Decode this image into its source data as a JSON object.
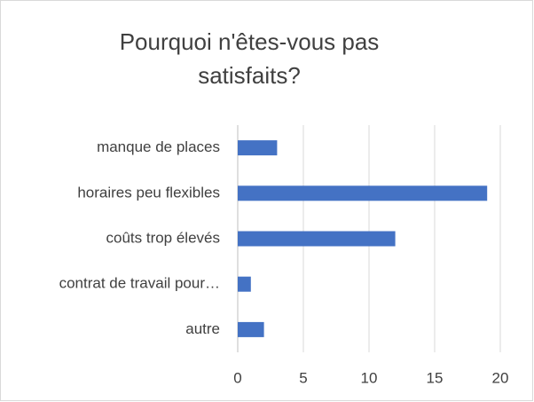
{
  "chart_data": {
    "type": "bar",
    "orientation": "horizontal",
    "title": "Pourquoi n'êtes-vous pas satisfaits?",
    "categories": [
      "manque de places",
      "horaires peu flexibles",
      "coûts trop élevés",
      "contrat de travail pour…",
      "autre"
    ],
    "values": [
      3,
      19,
      12,
      1,
      2
    ],
    "color": "#4472c4",
    "xlim": [
      0,
      20
    ],
    "xticks": [
      0,
      5,
      10,
      15,
      20
    ],
    "grid": true
  }
}
